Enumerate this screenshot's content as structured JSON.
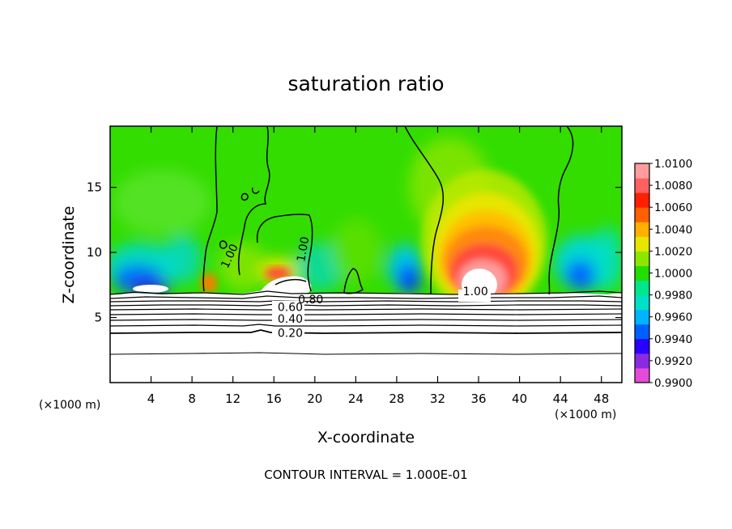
{
  "chart_data": {
    "type": "heatmap",
    "title": "saturation ratio",
    "xlabel": "X-coordinate",
    "ylabel": "Z-coordinate",
    "x_unit": "(×1000 m)",
    "y_unit": "(×1000 m)",
    "xlim": [
      0,
      50
    ],
    "ylim": [
      0,
      19.7
    ],
    "x_ticks": [
      4,
      8,
      12,
      16,
      20,
      24,
      28,
      32,
      36,
      40,
      44,
      48
    ],
    "y_ticks": [
      5,
      10,
      15
    ],
    "contour_interval_text": "CONTOUR INTERVAL = 1.000E-01",
    "colorbar": {
      "min": 0.99,
      "max": 1.01,
      "labels": [
        "1.0100",
        "1.0080",
        "1.0060",
        "1.0040",
        "1.0020",
        "1.0000",
        "0.9980",
        "0.9960",
        "0.9940",
        "0.9920",
        "0.9900"
      ],
      "colors": [
        "#e44bd8",
        "#8a2be2",
        "#2a00ff",
        "#0060ff",
        "#00b4ff",
        "#00e0c8",
        "#00e68a",
        "#22dd00",
        "#8ce600",
        "#e6e600",
        "#ffb000",
        "#ff6000",
        "#ff2000",
        "#ff6060",
        "#ff9c9c"
      ]
    },
    "contour_labels": [
      {
        "text": "1.00",
        "x": 12,
        "z": 9.6,
        "rotate": -65
      },
      {
        "text": "1.00",
        "x": 19.2,
        "z": 10.2,
        "rotate": -80
      },
      {
        "text": "1.00",
        "x": 35.7,
        "z": 6.7,
        "rotate": 0
      },
      {
        "text": "0.80",
        "x": 19.6,
        "z": 6.1,
        "rotate": 0
      },
      {
        "text": "0.60",
        "x": 17.6,
        "z": 5.5,
        "rotate": 0
      },
      {
        "text": "0.40",
        "x": 17.6,
        "z": 4.6,
        "rotate": 0
      },
      {
        "text": "0.20",
        "x": 17.6,
        "z": 3.5,
        "rotate": 0
      }
    ]
  }
}
